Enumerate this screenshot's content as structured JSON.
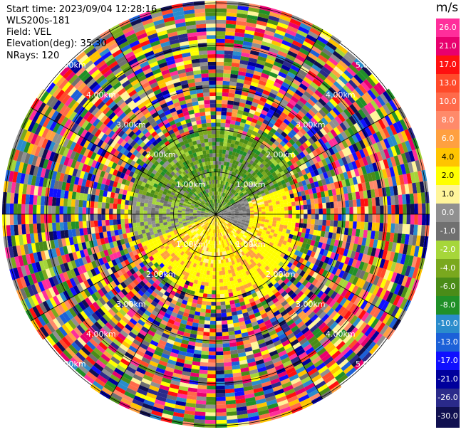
{
  "info": {
    "start_time": "Start time: 2023/09/04 12:28:16",
    "instrument": "WLS200s-181",
    "field": "Field: VEL",
    "elevation": "Elevation(deg): 35.30",
    "nrays": "NRays: 120"
  },
  "colorbar": {
    "title": "m/s",
    "ticks": [
      "26.0",
      "21.0",
      "17.0",
      "13.0",
      "10.0",
      "8.0",
      "6.0",
      "4.0",
      "2.0",
      "1.0",
      "0.0",
      "-1.0",
      "-2.0",
      "-4.0",
      "-6.0",
      "-8.0",
      "-10.0",
      "-13.0",
      "-17.0",
      "-21.0",
      "-26.0",
      "-30.0"
    ],
    "colors": [
      "#ff2e9b",
      "#e8006e",
      "#ff1010",
      "#ff4a2a",
      "#ff6a4a",
      "#ff8a6a",
      "#ffa040",
      "#ffc400",
      "#ffff00",
      "#fff59a",
      "#909090",
      "#707070",
      "#a6d63a",
      "#7aa81e",
      "#4a8c18",
      "#209028",
      "#2a8ccc",
      "#1c60d8",
      "#1010ff",
      "#00009c",
      "#2a2a8a",
      "#101050"
    ]
  },
  "chart_data": {
    "type": "heatmap",
    "projection": "polar PPI",
    "field": "VEL",
    "units": "m/s",
    "rays": 120,
    "range_rings_km": [
      1.0,
      2.0,
      3.0,
      4.0,
      5.0
    ],
    "ring_labels": [
      "1.00km",
      "2.00km",
      "3.00km",
      "4.00km",
      "5.00km"
    ],
    "max_range_km": 5.0,
    "value_ranges": [
      -30,
      26
    ],
    "description_of_pattern": {
      "near_range_north_velocity": "negative (-6 to -2)",
      "near_range_south_velocity": "positive (2 to 4)",
      "far_range": "noise across full scale"
    }
  }
}
